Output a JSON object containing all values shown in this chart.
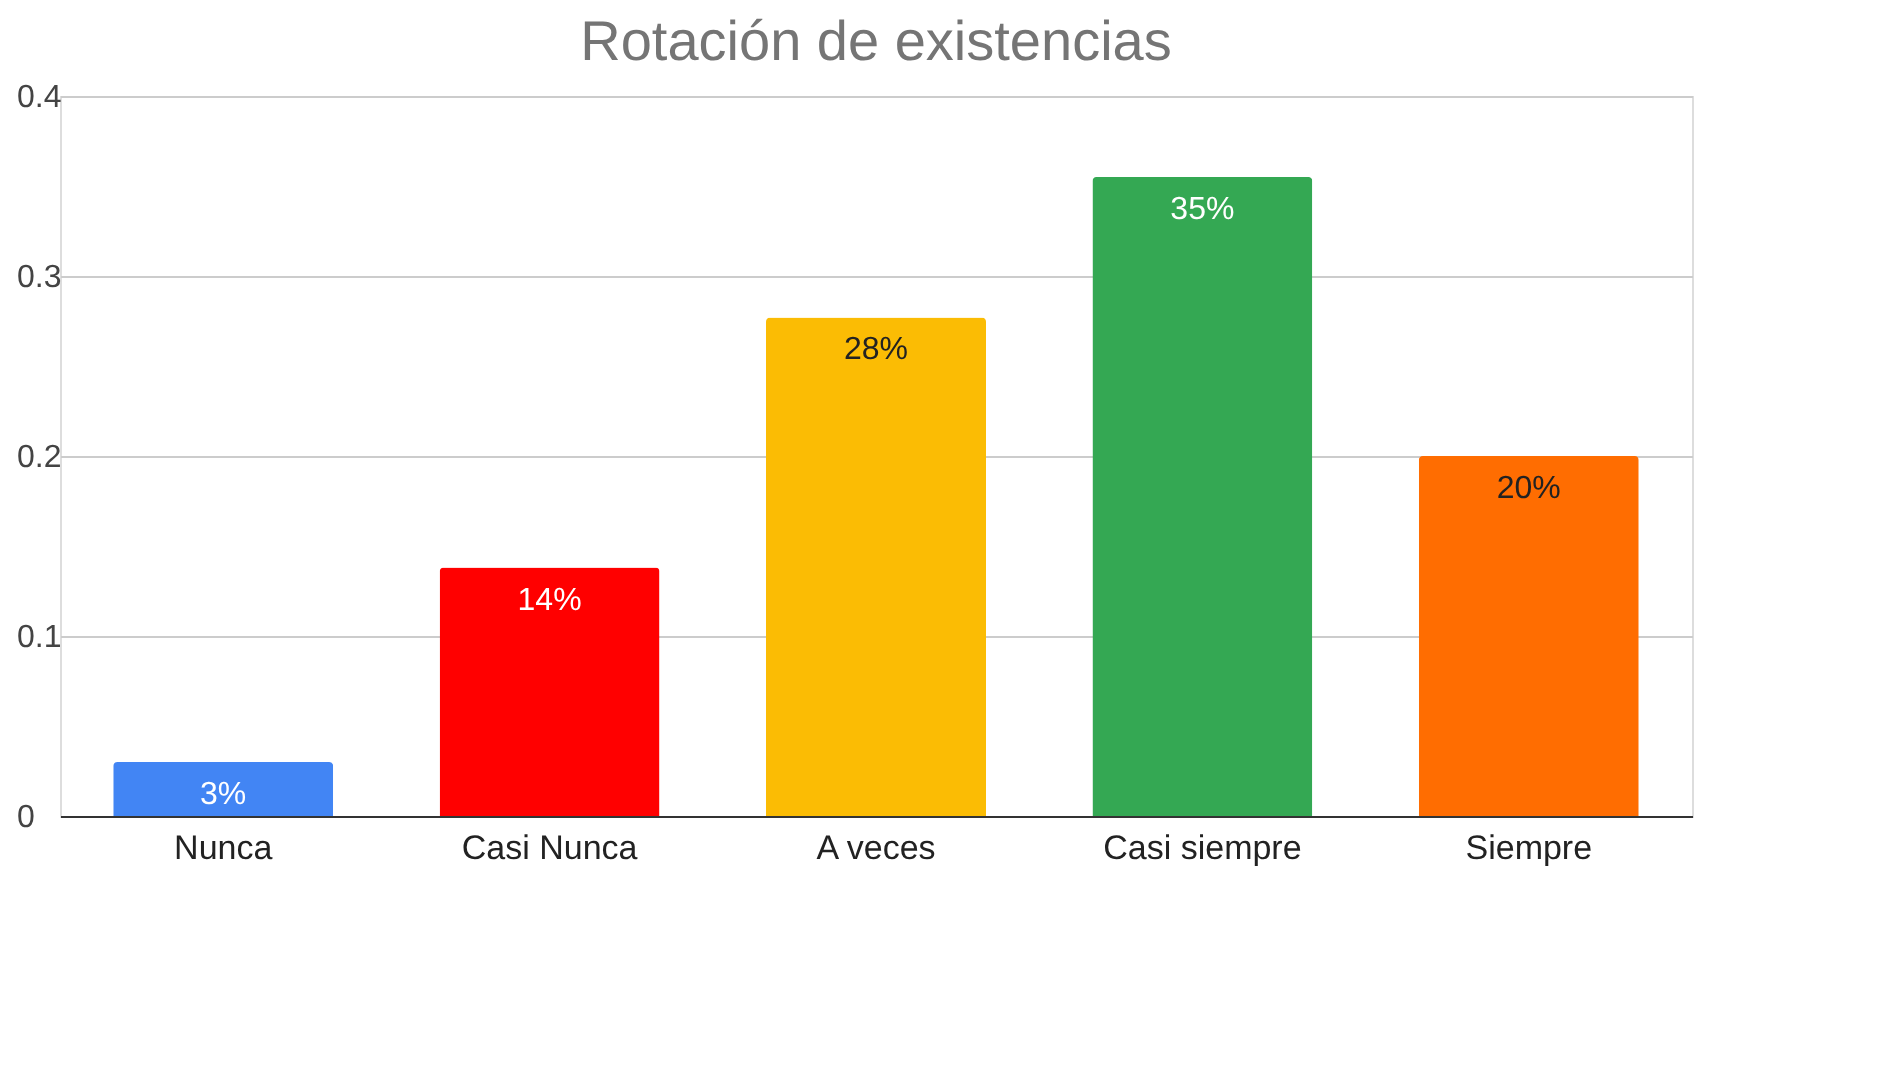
{
  "chart_data": {
    "type": "bar",
    "title": "Rotación de existencias",
    "categories": [
      "Nunca",
      "Casi Nunca",
      "A veces",
      "Casi siempre",
      "Siempre"
    ],
    "values": [
      0.03,
      0.138,
      0.277,
      0.355,
      0.2
    ],
    "colors": [
      "#4285f4",
      "#ff0000",
      "#fbbc04",
      "#34a853",
      "#ff6d01"
    ],
    "value_labels": [
      "3%",
      "14%",
      "28%",
      "35%",
      "20%"
    ],
    "ylim": [
      0,
      0.4
    ],
    "yticks": [
      0,
      0.1,
      0.2,
      0.3,
      0.4
    ],
    "grid": "y"
  }
}
